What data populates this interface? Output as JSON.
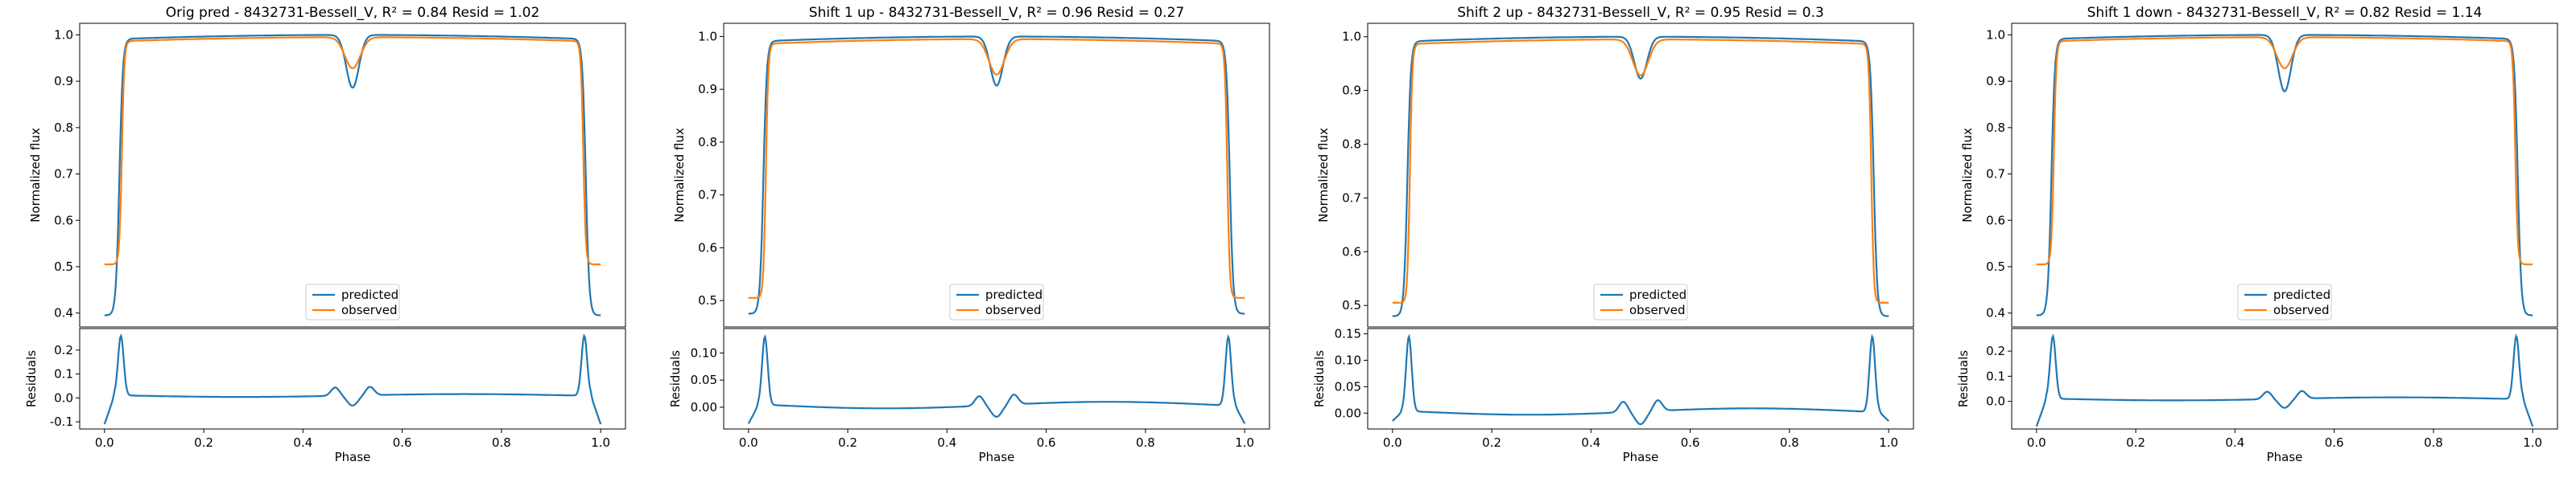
{
  "colors": {
    "predicted": "#1f77b4",
    "observed": "#ff7f0e"
  },
  "legend": {
    "predicted": "predicted",
    "observed": "observed"
  },
  "chart_data": [
    {
      "type": "line",
      "title": "Orig pred - 8432731-Bessell_V, R² = 0.84 Resid = 1.02",
      "ylabel": "Normalized flux",
      "xlabel": "Phase",
      "resid_ylabel": "Residuals",
      "xlim": [
        -0.05,
        1.05
      ],
      "ylim": [
        0.37,
        1.025
      ],
      "yticks": [
        0.4,
        0.5,
        0.6,
        0.7,
        0.8,
        0.9,
        1.0
      ],
      "resid_ylim": [
        -0.13,
        0.29
      ],
      "resid_yticks": [
        -0.1,
        0.0,
        0.1,
        0.2
      ],
      "xticks": [
        0.0,
        0.2,
        0.4,
        0.6,
        0.8,
        1.0
      ],
      "legend_position": "lower-center",
      "grid": false,
      "predicted": {
        "base": 0.395,
        "plateau": 0.99,
        "dip": 0.876
      },
      "observed": {
        "base": 0.505,
        "plateau": 0.985,
        "dip": 0.918
      },
      "residual": {
        "peak": 0.26,
        "low": -0.11,
        "level": 0.01,
        "bump": 0.035
      }
    },
    {
      "type": "line",
      "title": "Shift 1 up - 8432731-Bessell_V, R² = 0.96 Resid = 0.27",
      "ylabel": "Normalized flux",
      "xlabel": "Phase",
      "resid_ylabel": "Residuals",
      "xlim": [
        -0.05,
        1.05
      ],
      "ylim": [
        0.45,
        1.025
      ],
      "yticks": [
        0.5,
        0.6,
        0.7,
        0.8,
        0.9,
        1.0
      ],
      "resid_ylim": [
        -0.04,
        0.145
      ],
      "resid_yticks": [
        0.0,
        0.05,
        0.1
      ],
      "xticks": [
        0.0,
        0.2,
        0.4,
        0.6,
        0.8,
        1.0
      ],
      "legend_position": "lower-center",
      "grid": false,
      "predicted": {
        "base": 0.475,
        "plateau": 0.99,
        "dip": 0.897
      },
      "observed": {
        "base": 0.505,
        "plateau": 0.985,
        "dip": 0.918
      },
      "residual": {
        "peak": 0.13,
        "low": -0.03,
        "level": 0.004,
        "bump": 0.018
      }
    },
    {
      "type": "line",
      "title": "Shift 2 up - 8432731-Bessell_V, R² = 0.95 Resid = 0.3",
      "ylabel": "Normalized flux",
      "xlabel": "Phase",
      "resid_ylabel": "Residuals",
      "xlim": [
        -0.05,
        1.05
      ],
      "ylim": [
        0.46,
        1.025
      ],
      "yticks": [
        0.5,
        0.6,
        0.7,
        0.8,
        0.9,
        1.0
      ],
      "resid_ylim": [
        -0.03,
        0.16
      ],
      "resid_yticks": [
        0.0,
        0.05,
        0.1,
        0.15
      ],
      "xticks": [
        0.0,
        0.2,
        0.4,
        0.6,
        0.8,
        1.0
      ],
      "legend_position": "lower-center",
      "grid": false,
      "predicted": {
        "base": 0.48,
        "plateau": 0.99,
        "dip": 0.912
      },
      "observed": {
        "base": 0.505,
        "plateau": 0.985,
        "dip": 0.918
      },
      "residual": {
        "peak": 0.145,
        "low": -0.015,
        "level": 0.003,
        "bump": 0.02
      }
    },
    {
      "type": "line",
      "title": "Shift 1 down - 8432731-Bessell_V, R² = 0.82 Resid = 1.14",
      "ylabel": "Normalized flux",
      "xlabel": "Phase",
      "resid_ylabel": "Residuals",
      "xlim": [
        -0.05,
        1.05
      ],
      "ylim": [
        0.37,
        1.025
      ],
      "yticks": [
        0.4,
        0.5,
        0.6,
        0.7,
        0.8,
        0.9,
        1.0
      ],
      "resid_ylim": [
        -0.11,
        0.29
      ],
      "resid_yticks": [
        0.0,
        0.1,
        0.2
      ],
      "xticks": [
        0.0,
        0.2,
        0.4,
        0.6,
        0.8,
        1.0
      ],
      "legend_position": "lower-center",
      "grid": false,
      "predicted": {
        "base": 0.395,
        "plateau": 0.99,
        "dip": 0.868
      },
      "observed": {
        "base": 0.505,
        "plateau": 0.985,
        "dip": 0.918
      },
      "residual": {
        "peak": 0.26,
        "low": -0.1,
        "level": 0.01,
        "bump": 0.03
      }
    }
  ]
}
